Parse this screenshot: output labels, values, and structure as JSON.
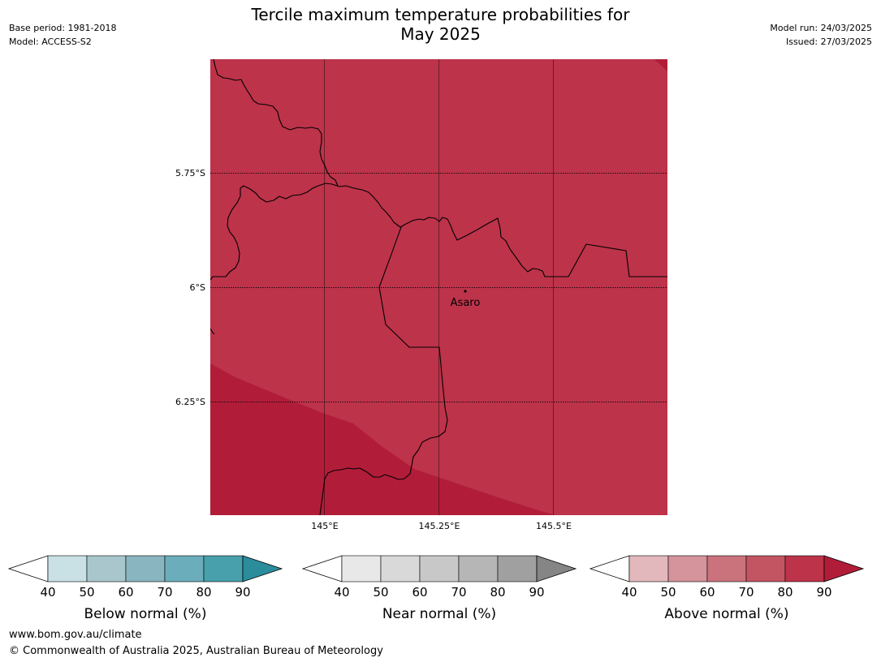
{
  "header": {
    "title_line1": "Tercile maximum temperature probabilities for",
    "title_line2": "May 2025",
    "base_period": "Base period: 1981-2018",
    "model": "Model: ACCESS-S2",
    "model_run": "Model run: 24/03/2025",
    "issued": "Issued: 27/03/2025"
  },
  "map": {
    "lat_labels": [
      "5.75°S",
      "6°S",
      "6.25°S"
    ],
    "lon_labels": [
      "145°E",
      "145.25°E",
      "145.5°E"
    ],
    "place_label": "Asaro",
    "colors": {
      "above_80_90": "#bd334a",
      "above_90_plus": "#b11d39",
      "border": "#000000"
    }
  },
  "legends": [
    {
      "label": "Below normal (%)",
      "ticks": [
        "40",
        "50",
        "60",
        "70",
        "80",
        "90"
      ],
      "colors": [
        "#ffffff",
        "#c9e0e4",
        "#a8c6cb",
        "#89b5c0",
        "#6badbb",
        "#48a0ad",
        "#2b8c9c"
      ]
    },
    {
      "label": "Near normal (%)",
      "ticks": [
        "40",
        "50",
        "60",
        "70",
        "80",
        "90"
      ],
      "colors": [
        "#ffffff",
        "#e8e8e8",
        "#d9d9d9",
        "#c8c8c8",
        "#b6b6b6",
        "#a0a0a0",
        "#858585"
      ]
    },
    {
      "label": "Above normal (%)",
      "ticks": [
        "40",
        "50",
        "60",
        "70",
        "80",
        "90"
      ],
      "colors": [
        "#ffffff",
        "#e3b8bd",
        "#d5939b",
        "#cb737d",
        "#c35563",
        "#bd334a",
        "#b11d39"
      ]
    }
  ],
  "footer": {
    "url": "www.bom.gov.au/climate",
    "copyright": "© Commonwealth of Australia 2025, Australian Bureau of Meteorology"
  }
}
